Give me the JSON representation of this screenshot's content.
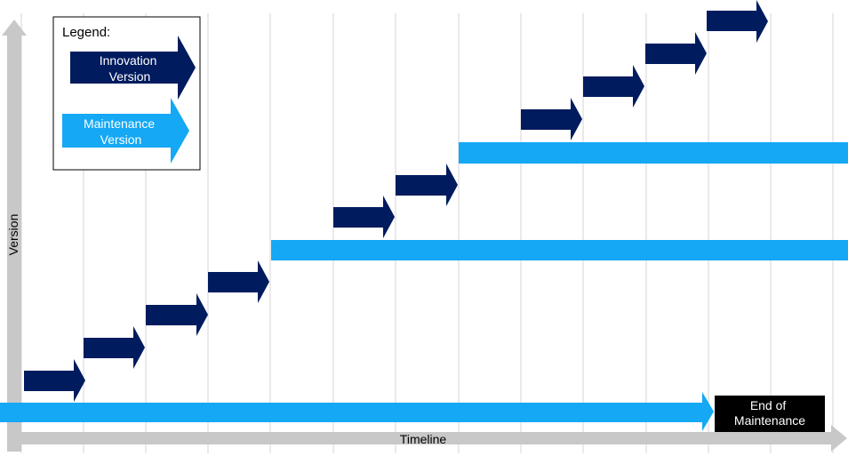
{
  "legend": {
    "title": "Legend:",
    "innovation_label_line1": "Innovation",
    "innovation_label_line2": "Version",
    "maintenance_label_line1": "Maintenance",
    "maintenance_label_line2": "Version"
  },
  "axes": {
    "y_label": "Version",
    "x_label": "Timeline"
  },
  "end_of_maintenance": {
    "line1": "End of",
    "line2": "Maintenance"
  },
  "colors": {
    "innovation": "#001B5E",
    "maintenance": "#14A8F5",
    "axis": "#C8C8C8",
    "gridline": "#D5D5D5",
    "eom_box": "#000000"
  }
}
